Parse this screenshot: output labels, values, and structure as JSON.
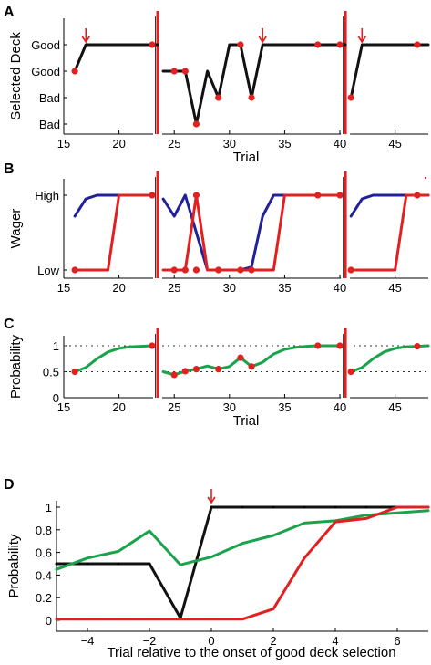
{
  "colors": {
    "black": "#111111",
    "blue": "#21219a",
    "red": "#e22020",
    "green": "#1aa34a",
    "dotted": "#333333"
  },
  "chart_data": [
    {
      "panel": "A",
      "type": "line",
      "xlabel": "Trial",
      "ylabel": "Selected Deck",
      "xlim": [
        15,
        48
      ],
      "x_ticks": [
        15,
        20,
        25,
        30,
        35,
        40,
        45
      ],
      "y_levels": [
        1,
        2,
        3,
        4
      ],
      "y_tick_labels": [
        "Bad",
        "Bad",
        "Good",
        "Good"
      ],
      "ylim": [
        1,
        4
      ],
      "deck_switch_trials": [
        23.5,
        40.5
      ],
      "good_deck_onset_trials": [
        17,
        33,
        42
      ],
      "series": [
        {
          "color": "black",
          "segments": [
            {
              "x": [
                16,
                17,
                18,
                19,
                20,
                21,
                22,
                23,
                23.5
              ],
              "y": [
                3,
                4,
                4,
                4,
                4,
                4,
                4,
                4,
                4
              ]
            },
            {
              "x": [
                24,
                25,
                26,
                27,
                28,
                29,
                30,
                31,
                32,
                33,
                34,
                35,
                36,
                37,
                38,
                39,
                40,
                40.5
              ],
              "y": [
                3,
                3,
                3,
                1,
                3,
                2,
                4,
                4,
                2,
                4,
                4,
                4,
                4,
                4,
                4,
                4,
                4,
                4
              ]
            },
            {
              "x": [
                41,
                42,
                43,
                44,
                45,
                46,
                47,
                48
              ],
              "y": [
                2,
                4,
                4,
                4,
                4,
                4,
                4,
                4
              ]
            }
          ]
        }
      ],
      "red_dots": [
        {
          "x": 16,
          "y": 3
        },
        {
          "x": 23,
          "y": 4
        },
        {
          "x": 25,
          "y": 3
        },
        {
          "x": 26,
          "y": 3
        },
        {
          "x": 27,
          "y": 1
        },
        {
          "x": 29,
          "y": 2
        },
        {
          "x": 31,
          "y": 4
        },
        {
          "x": 32,
          "y": 2
        },
        {
          "x": 38,
          "y": 4
        },
        {
          "x": 40,
          "y": 4
        },
        {
          "x": 41,
          "y": 2
        },
        {
          "x": 47,
          "y": 4
        }
      ]
    },
    {
      "panel": "B",
      "type": "line",
      "ylabel": "Wager",
      "xlim": [
        15,
        48
      ],
      "x_ticks": [
        15,
        20,
        25,
        30,
        35,
        40,
        45
      ],
      "y_tick_values": [
        0,
        1
      ],
      "y_tick_labels": [
        "Low",
        "High"
      ],
      "ylim": [
        0,
        1
      ],
      "deck_switch_trials": [
        23.5,
        40.5
      ],
      "series": [
        {
          "color": "blue",
          "segments": [
            {
              "x": [
                16,
                17,
                18,
                19,
                20,
                21,
                22,
                23
              ],
              "y": [
                0.72,
                0.95,
                1,
                1,
                1,
                1,
                1,
                1
              ]
            },
            {
              "x": [
                24,
                25,
                26,
                27,
                28,
                29,
                30,
                31,
                32,
                33,
                34,
                35,
                36,
                37,
                38,
                39,
                40
              ],
              "y": [
                0.95,
                0.72,
                1,
                0.5,
                0,
                0,
                0,
                0,
                0.04,
                0.72,
                1,
                1,
                1,
                1,
                1,
                1,
                1
              ]
            },
            {
              "x": [
                41,
                42,
                43,
                44,
                45,
                46,
                47,
                48
              ],
              "y": [
                0.72,
                0.95,
                1,
                1,
                1,
                1,
                1,
                1
              ]
            }
          ]
        },
        {
          "color": "red",
          "segments": [
            {
              "x": [
                16,
                17,
                18,
                19,
                20,
                21,
                22,
                23
              ],
              "y": [
                0,
                0,
                0,
                0,
                1,
                1,
                1,
                1
              ]
            },
            {
              "x": [
                24,
                25,
                26,
                27,
                28,
                29,
                30,
                31,
                32,
                33,
                34,
                35,
                36,
                37,
                38,
                39,
                40
              ],
              "y": [
                0,
                0,
                0,
                1,
                0,
                0,
                0,
                0,
                0,
                0,
                0,
                1,
                1,
                1,
                1,
                1,
                1
              ]
            },
            {
              "x": [
                41,
                42,
                43,
                44,
                45,
                46,
                47,
                48
              ],
              "y": [
                0,
                0,
                0,
                0,
                0,
                1,
                1,
                1
              ]
            }
          ]
        }
      ],
      "red_dots": [
        {
          "x": 16,
          "y": 0
        },
        {
          "x": 23,
          "y": 1
        },
        {
          "x": 25,
          "y": 0
        },
        {
          "x": 26,
          "y": 0
        },
        {
          "x": 27,
          "y": 1
        },
        {
          "x": 27,
          "y": 0
        },
        {
          "x": 29,
          "y": 0
        },
        {
          "x": 31,
          "y": 0
        },
        {
          "x": 32,
          "y": 0
        },
        {
          "x": 38,
          "y": 1
        },
        {
          "x": 40,
          "y": 1
        },
        {
          "x": 41,
          "y": 0
        },
        {
          "x": 47,
          "y": 1
        }
      ]
    },
    {
      "panel": "C",
      "type": "line",
      "xlabel": "Trial",
      "ylabel": "Probability",
      "xlim": [
        15,
        48
      ],
      "x_ticks": [
        15,
        20,
        25,
        30,
        35,
        40,
        45
      ],
      "y_tick_values": [
        0,
        0.5,
        1
      ],
      "y_tick_labels": [
        "0",
        "0.5",
        "1"
      ],
      "ylim": [
        0,
        1.05
      ],
      "dotted_reference_lines": [
        0.5,
        1
      ],
      "deck_switch_trials": [
        23.5,
        40.5
      ],
      "series": [
        {
          "color": "green",
          "segments": [
            {
              "x": [
                16,
                17,
                18,
                19,
                20,
                21,
                22,
                23
              ],
              "y": [
                0.5,
                0.58,
                0.75,
                0.88,
                0.95,
                0.98,
                0.99,
                1.0
              ]
            },
            {
              "x": [
                24,
                25,
                26,
                27,
                28,
                29,
                30,
                31,
                32,
                33,
                34,
                35,
                36,
                37,
                38,
                39,
                40
              ],
              "y": [
                0.5,
                0.44,
                0.51,
                0.55,
                0.61,
                0.55,
                0.6,
                0.77,
                0.6,
                0.68,
                0.84,
                0.93,
                0.97,
                0.99,
                1.0,
                1.0,
                1.0
              ]
            },
            {
              "x": [
                41,
                42,
                43,
                44,
                45,
                46,
                47,
                48
              ],
              "y": [
                0.5,
                0.58,
                0.75,
                0.88,
                0.95,
                0.98,
                0.99,
                1.0
              ]
            }
          ]
        }
      ],
      "red_dots": [
        {
          "x": 16,
          "y": 0.5
        },
        {
          "x": 23,
          "y": 1.0
        },
        {
          "x": 25,
          "y": 0.44
        },
        {
          "x": 26,
          "y": 0.51
        },
        {
          "x": 27,
          "y": 0.55
        },
        {
          "x": 29,
          "y": 0.55
        },
        {
          "x": 31,
          "y": 0.77
        },
        {
          "x": 32,
          "y": 0.6
        },
        {
          "x": 38,
          "y": 1.0
        },
        {
          "x": 40,
          "y": 1.0
        },
        {
          "x": 41,
          "y": 0.5
        },
        {
          "x": 47,
          "y": 0.99
        }
      ]
    },
    {
      "panel": "D",
      "type": "line",
      "xlabel": "Trial relative to the onset of good deck selection",
      "ylabel": "Probability",
      "xlim": [
        -5,
        7
      ],
      "x_ticks": [
        -4,
        -2,
        0,
        2,
        4,
        6
      ],
      "x_tick_labels": [
        "−4",
        "−2",
        "0",
        "2",
        "4",
        "6"
      ],
      "y_tick_values": [
        0,
        0.2,
        0.4,
        0.6,
        0.8,
        1
      ],
      "y_tick_labels": [
        "0",
        "0.2",
        "0.4",
        "0.6",
        "0.8",
        "1"
      ],
      "ylim": [
        -0.04,
        1.04
      ],
      "onset_arrow_x": 0,
      "series": [
        {
          "color": "black",
          "x": [
            -5,
            -4,
            -3,
            -2,
            -1,
            0,
            1,
            2,
            3,
            4,
            5,
            6,
            7
          ],
          "y": [
            0.5,
            0.5,
            0.5,
            0.5,
            0.02,
            1,
            1,
            1,
            1,
            1,
            1,
            1,
            1
          ]
        },
        {
          "color": "green",
          "x": [
            -5,
            -4,
            -3,
            -2,
            -1,
            0,
            1,
            2,
            3,
            4,
            5,
            6,
            7
          ],
          "y": [
            0.45,
            0.55,
            0.61,
            0.79,
            0.49,
            0.56,
            0.68,
            0.75,
            0.86,
            0.88,
            0.93,
            0.95,
            0.97
          ]
        },
        {
          "color": "red",
          "x": [
            -5,
            -4,
            -3,
            -2,
            -1,
            0,
            1,
            2,
            3,
            4,
            5,
            6,
            7
          ],
          "y": [
            0.01,
            0.01,
            0.01,
            0.01,
            0.01,
            0.01,
            0.01,
            0.1,
            0.55,
            0.87,
            0.9,
            1,
            1
          ]
        }
      ]
    }
  ]
}
